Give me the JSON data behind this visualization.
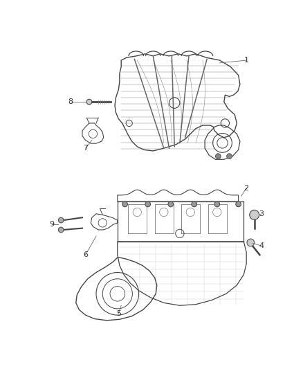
{
  "bg_color": "#ffffff",
  "line_color": "#444444",
  "grid_color": "#888888",
  "light_color": "#aaaaaa",
  "fig_width": 4.38,
  "fig_height": 5.33,
  "dpi": 100
}
